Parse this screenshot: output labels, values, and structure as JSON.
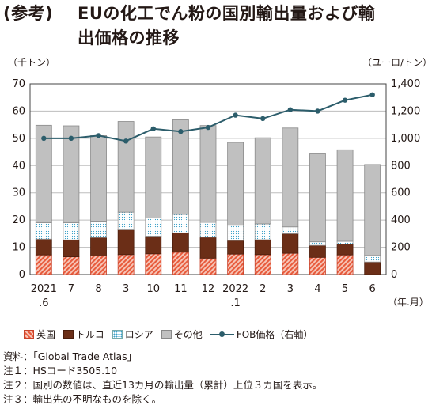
{
  "title": {
    "prefix": "(参考)",
    "line1": "EUの化工でん粉の国別輸出量および輸",
    "line2": "出価格の推移"
  },
  "units": {
    "left": "（千トン）",
    "right": "（ユーロ/トン）",
    "xunit": "（年.月）"
  },
  "legend": {
    "uk": "英国",
    "tr": "トルコ",
    "ru": "ロシア",
    "ot": "その他",
    "fob": "FOB価格（右軸）"
  },
  "notes": [
    "資料：「Global Trade Atlas」",
    "注１：HSコード3505.10",
    "注２：国別の数値は、直近13カ月の輸出量（累計）上位３カ国を表示。",
    "注３：輸出先の不明なものを除く。"
  ],
  "colors": {
    "uk": "#e85b3c",
    "tr": "#6b2e17",
    "ru": "#3aa0c8",
    "ot": "#c0c0c0",
    "fob": "#2c5d6b"
  },
  "chart_data": {
    "type": "bar",
    "stacked": true,
    "categories": [
      "2021\n.6",
      "7",
      "8",
      "3",
      "10",
      "11",
      "12",
      "2022\n.1",
      "2",
      "3",
      "4",
      "5",
      "6"
    ],
    "series": [
      {
        "name": "英国",
        "values": [
          7.2,
          6.5,
          6.8,
          7.3,
          7.6,
          8.2,
          6.0,
          7.5,
          7.3,
          7.8,
          6.3,
          7.2,
          0.0
        ]
      },
      {
        "name": "トルコ",
        "values": [
          5.8,
          6.2,
          6.8,
          9.1,
          6.5,
          7.1,
          7.7,
          5.0,
          5.5,
          7.2,
          4.4,
          4.0,
          4.6
        ]
      },
      {
        "name": "ロシア",
        "values": [
          6.0,
          6.3,
          6.0,
          6.5,
          6.7,
          6.8,
          5.5,
          5.6,
          5.8,
          2.5,
          1.3,
          1.0,
          2.4
        ]
      },
      {
        "name": "その他",
        "values": [
          35.8,
          35.6,
          31.4,
          33.3,
          29.7,
          34.7,
          35.5,
          30.4,
          31.6,
          36.3,
          32.3,
          33.6,
          33.4
        ]
      },
      {
        "name": "FOB価格（右軸）",
        "type": "line",
        "axis": "right",
        "values": [
          1000,
          1000,
          1020,
          980,
          1070,
          1050,
          1080,
          1170,
          1145,
          1210,
          1200,
          1280,
          1320
        ]
      }
    ],
    "y_left": {
      "range": [
        0,
        70
      ],
      "ticks": [
        0,
        10,
        20,
        30,
        40,
        50,
        60,
        70
      ]
    },
    "y_right": {
      "range": [
        0,
        1400
      ],
      "ticks": [
        "0",
        "200",
        "400",
        "600",
        "800",
        "1,000",
        "1,200",
        "1,400"
      ]
    },
    "grid": true,
    "legend_position": "bottom"
  }
}
